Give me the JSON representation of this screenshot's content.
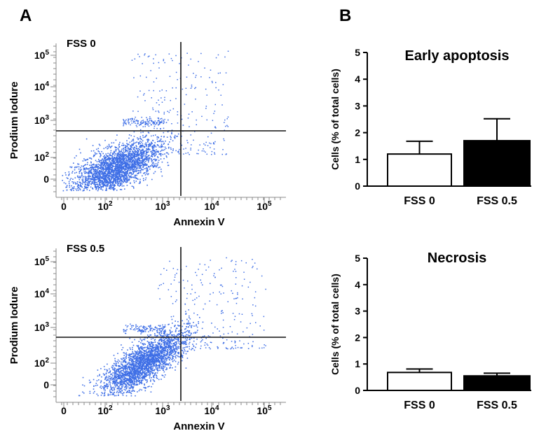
{
  "panel_labels": {
    "a": "A",
    "b": "B"
  },
  "colors": {
    "dots": "#3f6fe6",
    "axis": "#8a8a8a",
    "gate": "#111111",
    "bar_fill_fss0": "#ffffff",
    "bar_fill_fss05": "#000000"
  },
  "flow_axes": {
    "x_title": "Annexin V",
    "y_title": "Prodium Iodure",
    "x_ticks": [
      {
        "base": "0",
        "exp": ""
      },
      {
        "base": "10",
        "exp": "2"
      },
      {
        "base": "10",
        "exp": "3"
      },
      {
        "base": "10",
        "exp": "4"
      },
      {
        "base": "10",
        "exp": "5"
      }
    ],
    "y_ticks": [
      {
        "base": "0",
        "exp": ""
      },
      {
        "base": "10",
        "exp": "2"
      },
      {
        "base": "10",
        "exp": "3"
      },
      {
        "base": "10",
        "exp": "4"
      },
      {
        "base": "10",
        "exp": "5"
      }
    ]
  },
  "chart_data": [
    {
      "type": "scatter",
      "title": "FSS 0",
      "xlabel": "Annexin V",
      "ylabel": "Prodium Iodure",
      "x_scale": "biexponential",
      "y_scale": "biexponential",
      "quadrant_gate": {
        "x": 2500,
        "y": 500
      },
      "population": {
        "main_center": [
          250,
          30
        ],
        "note": "dense population centered in lower-left quadrant"
      }
    },
    {
      "type": "scatter",
      "title": "FSS 0.5",
      "xlabel": "Annexin V",
      "ylabel": "Prodium Iodure",
      "x_scale": "biexponential",
      "y_scale": "biexponential",
      "quadrant_gate": {
        "x": 2500,
        "y": 500
      },
      "population": {
        "main_center": [
          500,
          50
        ],
        "note": "dense population centered in lower-left quadrant"
      }
    },
    {
      "type": "bar",
      "title": "Early apoptosis",
      "ylabel": "Cells (% of total cells)",
      "categories": [
        "FSS 0",
        "FSS 0.5"
      ],
      "values": [
        1.2,
        1.7
      ],
      "errors": [
        0.48,
        0.82
      ],
      "ylim": [
        0,
        5
      ],
      "yticks": [
        "0",
        "1",
        "2",
        "3",
        "4",
        "5"
      ]
    },
    {
      "type": "bar",
      "title": "Necrosis",
      "ylabel": "Cells (% of total cells)",
      "categories": [
        "FSS 0",
        "FSS 0.5"
      ],
      "values": [
        0.68,
        0.55
      ],
      "errors": [
        0.13,
        0.1
      ],
      "ylim": [
        0,
        5
      ],
      "yticks": [
        "0",
        "1",
        "2",
        "3",
        "4",
        "5"
      ]
    }
  ]
}
